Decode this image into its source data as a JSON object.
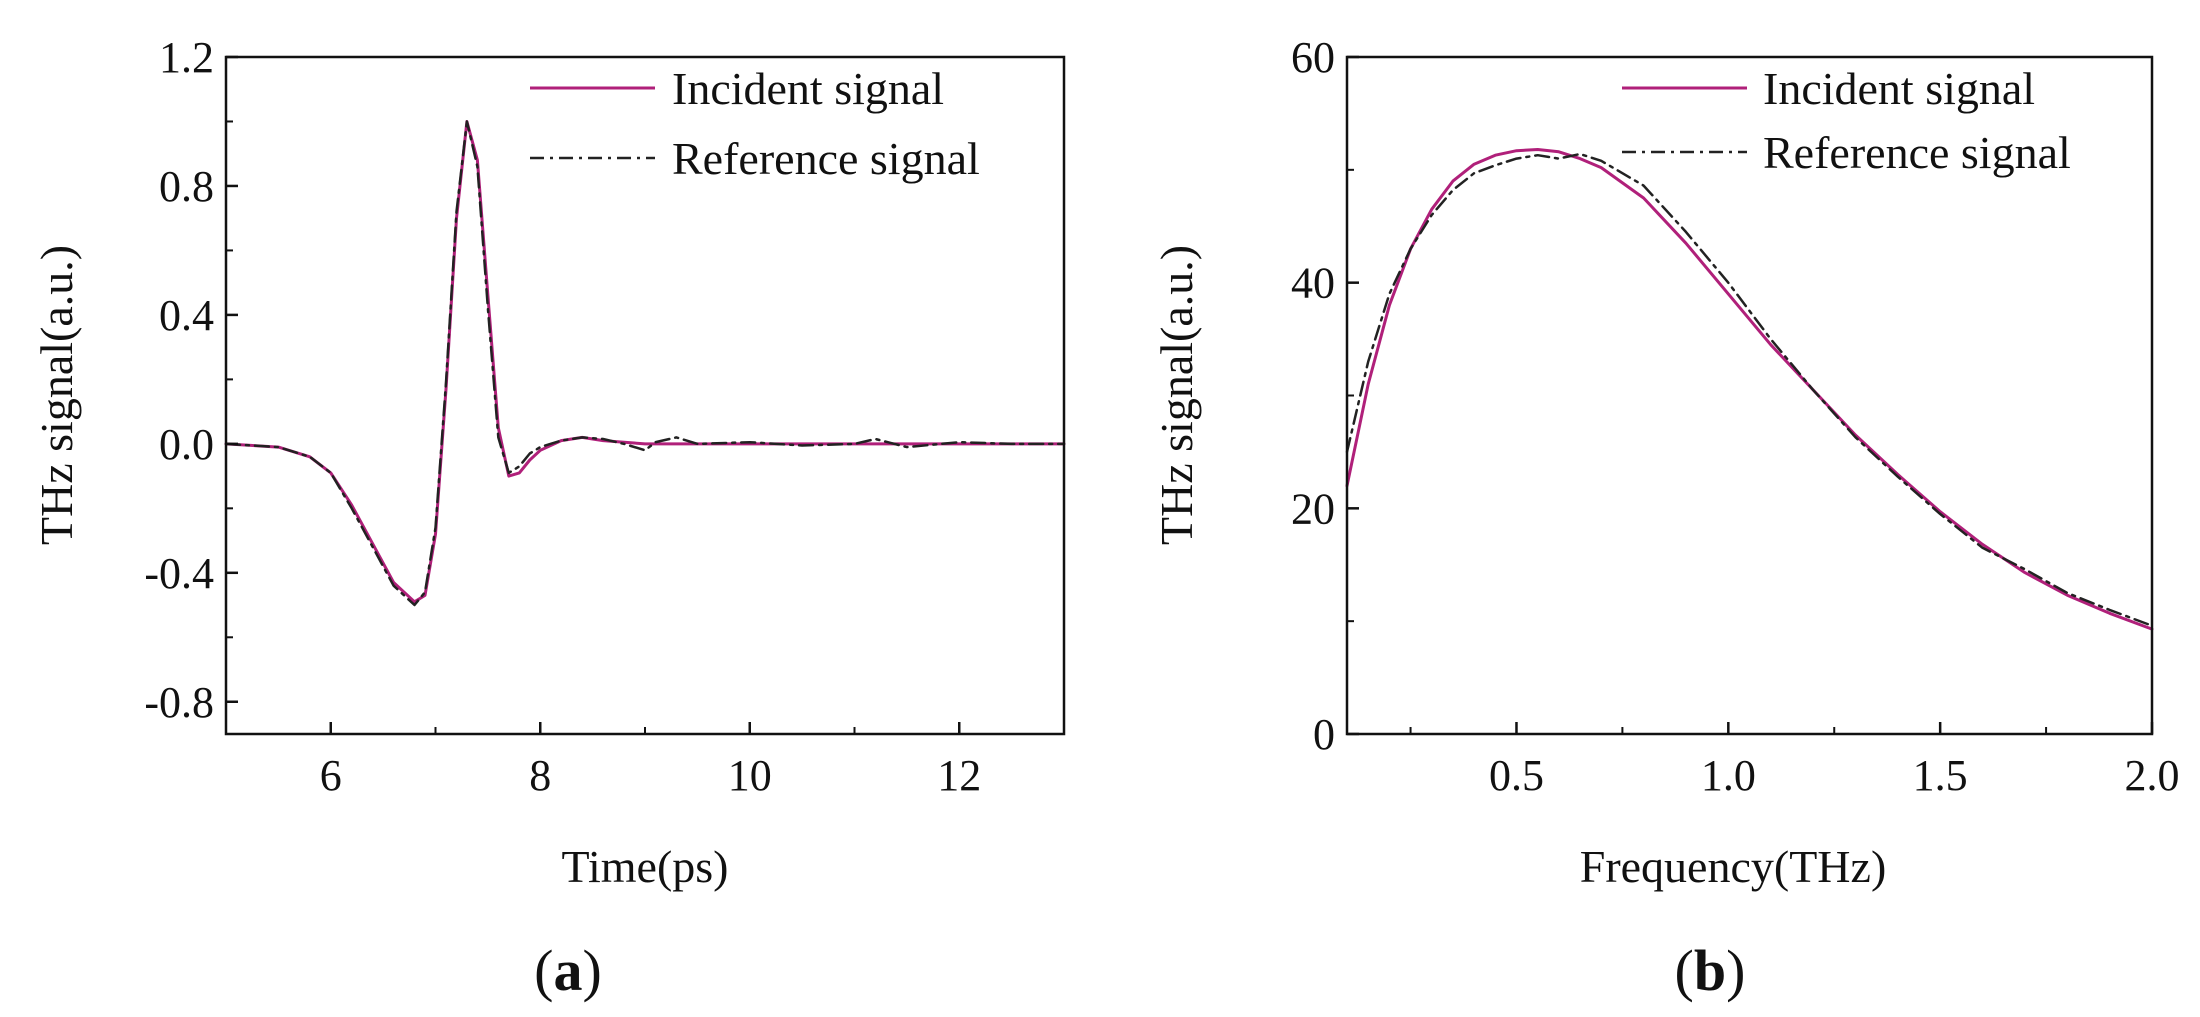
{
  "chart_data": [
    {
      "type": "line",
      "panel_label": "a",
      "xlabel": "Time(ps)",
      "ylabel": "THz signal(a.u.)",
      "xlim": [
        5,
        13
      ],
      "ylim": [
        -0.9,
        1.2
      ],
      "xticks": [
        6,
        8,
        10,
        12
      ],
      "xtick_labels": [
        "6",
        "8",
        "10",
        "12"
      ],
      "yticks": [
        -0.8,
        -0.4,
        0.0,
        0.4,
        0.8,
        1.2
      ],
      "ytick_labels": [
        "-0.8",
        "-0.4",
        "0.0",
        "0.4",
        "0.8",
        "1.2"
      ],
      "legend_position": "top-right",
      "series": [
        {
          "name": "Incident signal",
          "color": "#b0207a",
          "style": "solid",
          "x": [
            5.0,
            5.5,
            5.8,
            6.0,
            6.2,
            6.4,
            6.6,
            6.8,
            6.9,
            7.0,
            7.1,
            7.2,
            7.3,
            7.4,
            7.5,
            7.6,
            7.7,
            7.8,
            7.9,
            8.0,
            8.2,
            8.4,
            8.6,
            8.8,
            9.0,
            9.5,
            10.0,
            10.5,
            11.0,
            11.5,
            12.0,
            12.5,
            13.0
          ],
          "y": [
            0.0,
            -0.01,
            -0.04,
            -0.09,
            -0.19,
            -0.31,
            -0.43,
            -0.49,
            -0.47,
            -0.28,
            0.17,
            0.7,
            1.0,
            0.88,
            0.46,
            0.05,
            -0.1,
            -0.09,
            -0.05,
            -0.02,
            0.01,
            0.02,
            0.01,
            0.005,
            0.0,
            0.0,
            0.0,
            0.0,
            0.0,
            0.0,
            0.0,
            0.0,
            0.0
          ]
        },
        {
          "name": "Reference signal",
          "color": "#222222",
          "style": "dashdot",
          "x": [
            5.0,
            5.5,
            5.8,
            6.0,
            6.2,
            6.4,
            6.6,
            6.8,
            6.9,
            7.0,
            7.1,
            7.2,
            7.3,
            7.4,
            7.5,
            7.6,
            7.7,
            7.8,
            7.9,
            8.0,
            8.2,
            8.4,
            8.6,
            8.8,
            9.0,
            9.1,
            9.3,
            9.5,
            10.0,
            10.5,
            11.0,
            11.2,
            11.5,
            12.0,
            12.5,
            13.0
          ],
          "y": [
            0.0,
            -0.01,
            -0.04,
            -0.09,
            -0.2,
            -0.32,
            -0.44,
            -0.5,
            -0.46,
            -0.26,
            0.19,
            0.72,
            1.0,
            0.86,
            0.42,
            0.02,
            -0.09,
            -0.07,
            -0.03,
            -0.01,
            0.01,
            0.02,
            0.015,
            0.0,
            -0.02,
            0.005,
            0.02,
            0.0,
            0.005,
            -0.005,
            0.0,
            0.015,
            -0.01,
            0.005,
            0.0,
            0.0
          ]
        }
      ]
    },
    {
      "type": "line",
      "panel_label": "b",
      "xlabel": "Frequency(THz)",
      "ylabel": "THz signal(a.u.)",
      "xlim": [
        0.1,
        2.0
      ],
      "ylim": [
        0,
        60
      ],
      "xticks": [
        0.5,
        1.0,
        1.5,
        2.0
      ],
      "xtick_labels": [
        "0.5",
        "1.0",
        "1.5",
        "2.0"
      ],
      "yticks": [
        0,
        20,
        40,
        60
      ],
      "ytick_labels": [
        "0",
        "20",
        "40",
        "60"
      ],
      "legend_position": "top-right",
      "series": [
        {
          "name": "Incident signal",
          "color": "#b0207a",
          "style": "solid",
          "x": [
            0.1,
            0.15,
            0.2,
            0.25,
            0.3,
            0.35,
            0.4,
            0.45,
            0.5,
            0.55,
            0.6,
            0.65,
            0.7,
            0.8,
            0.9,
            1.0,
            1.1,
            1.2,
            1.3,
            1.4,
            1.5,
            1.6,
            1.7,
            1.8,
            1.9,
            2.0
          ],
          "y": [
            22.0,
            31.0,
            38.0,
            43.0,
            46.5,
            49.0,
            50.5,
            51.3,
            51.7,
            51.8,
            51.6,
            51.0,
            50.2,
            47.5,
            43.5,
            39.0,
            34.5,
            30.5,
            26.5,
            23.0,
            19.7,
            16.8,
            14.3,
            12.3,
            10.7,
            9.3
          ]
        },
        {
          "name": "Reference signal",
          "color": "#222222",
          "style": "dashdot",
          "x": [
            0.1,
            0.15,
            0.2,
            0.25,
            0.3,
            0.35,
            0.4,
            0.45,
            0.5,
            0.55,
            0.6,
            0.65,
            0.7,
            0.8,
            0.9,
            1.0,
            1.1,
            1.2,
            1.3,
            1.4,
            1.5,
            1.6,
            1.7,
            1.8,
            1.9,
            2.0
          ],
          "y": [
            25.0,
            33.0,
            39.0,
            43.0,
            46.0,
            48.2,
            49.7,
            50.4,
            51.0,
            51.3,
            51.0,
            51.4,
            50.8,
            48.6,
            44.5,
            40.0,
            35.0,
            30.5,
            26.3,
            22.8,
            19.5,
            16.5,
            14.6,
            12.5,
            11.0,
            9.6
          ]
        }
      ]
    }
  ]
}
